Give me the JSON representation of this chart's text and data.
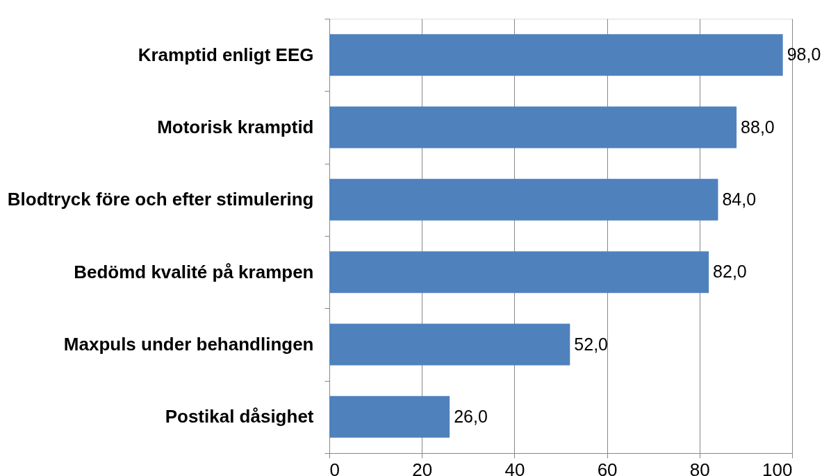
{
  "chart_data": {
    "type": "bar",
    "orientation": "horizontal",
    "categories": [
      "Kramptid enligt EEG",
      "Motorisk kramptid",
      "Blodtryck före och efter stimulering",
      "Bedömd kvalité på krampen",
      "Maxpuls under behandlingen",
      "Postikal dåsighet"
    ],
    "values": [
      98.0,
      88.0,
      84.0,
      82.0,
      52.0,
      26.0
    ],
    "value_labels": [
      "98,0",
      "88,0",
      "84,0",
      "82,0",
      "52,0",
      "26,0"
    ],
    "color": "#4f81bd",
    "xlim": [
      0,
      100
    ],
    "xticks": [
      0,
      20,
      40,
      60,
      80,
      100
    ],
    "grid": "x"
  }
}
